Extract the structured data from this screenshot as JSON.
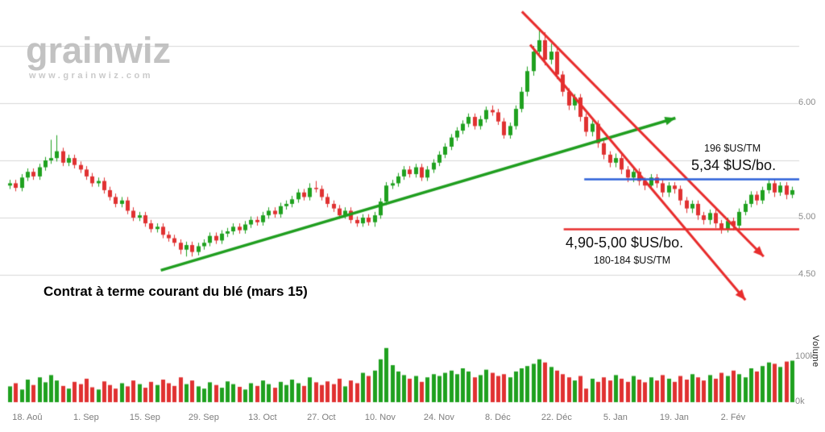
{
  "logo": {
    "name": "grainwiz",
    "url": "www.grainwiz.com"
  },
  "chart_data": {
    "type": "candlestick",
    "title": "Contrat à terme courant du blé (mars 15)",
    "colors": {
      "up": "#1fa11f",
      "down": "#e03131",
      "grid": "#d8d8d8"
    },
    "layout_hints": {
      "grid": "horizontal-only",
      "price_axis_side": "right",
      "volume_panel": "bottom",
      "legend": "none"
    },
    "price_axis": {
      "ticks": [
        {
          "label": "6.00",
          "value": 6.0
        },
        {
          "label": "5.00",
          "value": 5.0
        },
        {
          "label": "4.50",
          "value": 4.5
        }
      ],
      "gridlines": [
        6.5,
        6.0,
        5.5,
        5.0,
        4.5
      ],
      "range": [
        4.3,
        6.85
      ]
    },
    "volume_axis": {
      "label": "Volume",
      "ticks": [
        {
          "label": "100k",
          "value": 100
        },
        {
          "label": "0k",
          "value": 0
        }
      ],
      "unit": "k"
    },
    "x_ticks": [
      {
        "label": "18. Aoû",
        "index": 3
      },
      {
        "label": "1. Sep",
        "index": 13
      },
      {
        "label": "15. Sep",
        "index": 23
      },
      {
        "label": "29. Sep",
        "index": 33
      },
      {
        "label": "13. Oct",
        "index": 43
      },
      {
        "label": "27. Oct",
        "index": 53
      },
      {
        "label": "10. Nov",
        "index": 63
      },
      {
        "label": "24. Nov",
        "index": 73
      },
      {
        "label": "8. Déc",
        "index": 83
      },
      {
        "label": "22. Déc",
        "index": 93
      },
      {
        "label": "5. Jan",
        "index": 103
      },
      {
        "label": "19. Jan",
        "index": 113
      },
      {
        "label": "2. Fév",
        "index": 123
      }
    ],
    "candles_format": [
      "open",
      "high",
      "low",
      "close",
      "volume_k"
    ],
    "candles": [
      [
        5.28,
        5.33,
        5.25,
        5.3,
        35
      ],
      [
        5.3,
        5.33,
        5.23,
        5.26,
        42
      ],
      [
        5.26,
        5.38,
        5.23,
        5.35,
        28
      ],
      [
        5.35,
        5.43,
        5.32,
        5.4,
        50
      ],
      [
        5.4,
        5.43,
        5.33,
        5.36,
        38
      ],
      [
        5.36,
        5.47,
        5.33,
        5.44,
        55
      ],
      [
        5.44,
        5.53,
        5.41,
        5.5,
        44
      ],
      [
        5.5,
        5.68,
        5.47,
        5.52,
        60
      ],
      [
        5.52,
        5.72,
        5.49,
        5.58,
        48
      ],
      [
        5.58,
        5.61,
        5.45,
        5.48,
        36
      ],
      [
        5.48,
        5.55,
        5.45,
        5.52,
        30
      ],
      [
        5.52,
        5.55,
        5.43,
        5.46,
        45
      ],
      [
        5.46,
        5.49,
        5.39,
        5.42,
        40
      ],
      [
        5.42,
        5.45,
        5.33,
        5.36,
        52
      ],
      [
        5.36,
        5.39,
        5.27,
        5.3,
        33
      ],
      [
        5.3,
        5.35,
        5.27,
        5.32,
        28
      ],
      [
        5.32,
        5.35,
        5.21,
        5.24,
        46
      ],
      [
        5.24,
        5.27,
        5.15,
        5.18,
        38
      ],
      [
        5.18,
        5.21,
        5.09,
        5.12,
        30
      ],
      [
        5.12,
        5.18,
        5.09,
        5.15,
        42
      ],
      [
        5.15,
        5.18,
        5.03,
        5.06,
        35
      ],
      [
        5.06,
        5.09,
        4.97,
        5.0,
        48
      ],
      [
        5.0,
        5.05,
        4.97,
        5.02,
        40
      ],
      [
        5.02,
        5.05,
        4.92,
        4.95,
        32
      ],
      [
        4.95,
        4.98,
        4.87,
        4.9,
        45
      ],
      [
        4.9,
        4.95,
        4.87,
        4.92,
        38
      ],
      [
        4.92,
        4.95,
        4.82,
        4.85,
        50
      ],
      [
        4.85,
        4.88,
        4.79,
        4.82,
        42
      ],
      [
        4.82,
        4.85,
        4.75,
        4.78,
        36
      ],
      [
        4.78,
        4.81,
        4.68,
        4.72,
        55
      ],
      [
        4.72,
        4.79,
        4.66,
        4.76,
        40
      ],
      [
        4.76,
        4.79,
        4.66,
        4.7,
        48
      ],
      [
        4.7,
        4.78,
        4.67,
        4.75,
        35
      ],
      [
        4.75,
        4.81,
        4.72,
        4.78,
        30
      ],
      [
        4.78,
        4.87,
        4.75,
        4.84,
        44
      ],
      [
        4.84,
        4.87,
        4.77,
        4.8,
        38
      ],
      [
        4.8,
        4.89,
        4.77,
        4.86,
        32
      ],
      [
        4.86,
        4.91,
        4.83,
        4.88,
        46
      ],
      [
        4.88,
        4.95,
        4.85,
        4.92,
        40
      ],
      [
        4.92,
        4.95,
        4.86,
        4.89,
        34
      ],
      [
        4.89,
        4.97,
        4.86,
        4.94,
        28
      ],
      [
        4.94,
        5.01,
        4.91,
        4.98,
        42
      ],
      [
        4.98,
        5.01,
        4.93,
        4.96,
        36
      ],
      [
        4.96,
        5.05,
        4.93,
        5.02,
        48
      ],
      [
        5.02,
        5.09,
        4.99,
        5.06,
        40
      ],
      [
        5.06,
        5.09,
        5.0,
        5.03,
        32
      ],
      [
        5.03,
        5.13,
        5.0,
        5.1,
        45
      ],
      [
        5.1,
        5.15,
        5.07,
        5.12,
        38
      ],
      [
        5.12,
        5.19,
        5.09,
        5.16,
        50
      ],
      [
        5.16,
        5.25,
        5.13,
        5.22,
        42
      ],
      [
        5.22,
        5.25,
        5.15,
        5.18,
        36
      ],
      [
        5.18,
        5.3,
        5.15,
        5.26,
        55
      ],
      [
        5.26,
        5.32,
        5.22,
        5.25,
        44
      ],
      [
        5.25,
        5.28,
        5.15,
        5.18,
        38
      ],
      [
        5.18,
        5.21,
        5.09,
        5.12,
        46
      ],
      [
        5.12,
        5.15,
        5.05,
        5.08,
        40
      ],
      [
        5.08,
        5.11,
        4.99,
        5.02,
        52
      ],
      [
        5.02,
        5.09,
        4.99,
        5.06,
        35
      ],
      [
        5.06,
        5.09,
        4.95,
        4.98,
        48
      ],
      [
        4.98,
        5.01,
        4.92,
        4.95,
        42
      ],
      [
        4.95,
        5.03,
        4.92,
        5.0,
        65
      ],
      [
        5.0,
        5.03,
        4.93,
        4.96,
        58
      ],
      [
        4.96,
        5.05,
        4.92,
        5.02,
        70
      ],
      [
        5.02,
        5.17,
        4.99,
        5.14,
        95
      ],
      [
        5.14,
        5.31,
        5.11,
        5.28,
        120
      ],
      [
        5.28,
        5.33,
        5.25,
        5.3,
        82
      ],
      [
        5.3,
        5.39,
        5.27,
        5.36,
        68
      ],
      [
        5.36,
        5.45,
        5.33,
        5.42,
        60
      ],
      [
        5.42,
        5.45,
        5.35,
        5.38,
        52
      ],
      [
        5.38,
        5.47,
        5.35,
        5.44,
        58
      ],
      [
        5.44,
        5.47,
        5.32,
        5.35,
        45
      ],
      [
        5.35,
        5.45,
        5.32,
        5.42,
        55
      ],
      [
        5.42,
        5.51,
        5.39,
        5.48,
        62
      ],
      [
        5.48,
        5.58,
        5.45,
        5.55,
        58
      ],
      [
        5.55,
        5.65,
        5.52,
        5.62,
        65
      ],
      [
        5.62,
        5.73,
        5.59,
        5.7,
        70
      ],
      [
        5.7,
        5.79,
        5.67,
        5.76,
        62
      ],
      [
        5.76,
        5.85,
        5.73,
        5.82,
        75
      ],
      [
        5.82,
        5.91,
        5.79,
        5.88,
        68
      ],
      [
        5.88,
        5.91,
        5.77,
        5.8,
        55
      ],
      [
        5.8,
        5.89,
        5.77,
        5.86,
        60
      ],
      [
        5.86,
        5.97,
        5.83,
        5.94,
        72
      ],
      [
        5.94,
        5.98,
        5.89,
        5.92,
        65
      ],
      [
        5.92,
        5.95,
        5.81,
        5.84,
        58
      ],
      [
        5.84,
        5.87,
        5.69,
        5.72,
        62
      ],
      [
        5.72,
        5.83,
        5.69,
        5.8,
        55
      ],
      [
        5.8,
        5.98,
        5.77,
        5.95,
        68
      ],
      [
        5.95,
        6.14,
        5.92,
        6.1,
        75
      ],
      [
        6.1,
        6.32,
        6.06,
        6.28,
        80
      ],
      [
        6.28,
        6.5,
        6.24,
        6.45,
        85
      ],
      [
        6.45,
        6.65,
        6.4,
        6.55,
        95
      ],
      [
        6.55,
        6.62,
        6.33,
        6.38,
        88
      ],
      [
        6.38,
        6.52,
        6.34,
        6.45,
        78
      ],
      [
        6.45,
        6.48,
        6.21,
        6.25,
        70
      ],
      [
        6.25,
        6.28,
        6.06,
        6.1,
        62
      ],
      [
        6.1,
        6.13,
        5.94,
        5.98,
        55
      ],
      [
        5.98,
        6.08,
        5.94,
        6.05,
        48
      ],
      [
        6.05,
        6.08,
        5.84,
        5.88,
        58
      ],
      [
        5.88,
        5.91,
        5.71,
        5.75,
        30
      ],
      [
        5.75,
        5.85,
        5.71,
        5.82,
        52
      ],
      [
        5.82,
        5.85,
        5.61,
        5.65,
        45
      ],
      [
        5.65,
        5.68,
        5.51,
        5.55,
        55
      ],
      [
        5.55,
        5.58,
        5.44,
        5.48,
        48
      ],
      [
        5.48,
        5.56,
        5.44,
        5.52,
        60
      ],
      [
        5.52,
        5.55,
        5.38,
        5.42,
        52
      ],
      [
        5.42,
        5.45,
        5.31,
        5.35,
        45
      ],
      [
        5.35,
        5.44,
        5.31,
        5.4,
        58
      ],
      [
        5.4,
        5.43,
        5.28,
        5.32,
        50
      ],
      [
        5.32,
        5.35,
        5.24,
        5.28,
        44
      ],
      [
        5.28,
        5.38,
        5.24,
        5.35,
        55
      ],
      [
        5.35,
        5.38,
        5.26,
        5.3,
        48
      ],
      [
        5.3,
        5.33,
        5.18,
        5.22,
        60
      ],
      [
        5.22,
        5.31,
        5.18,
        5.28,
        52
      ],
      [
        5.28,
        5.31,
        5.21,
        5.25,
        45
      ],
      [
        5.25,
        5.28,
        5.11,
        5.15,
        58
      ],
      [
        5.15,
        5.18,
        5.04,
        5.08,
        50
      ],
      [
        5.08,
        5.15,
        5.04,
        5.12,
        62
      ],
      [
        5.12,
        5.15,
        4.98,
        5.02,
        55
      ],
      [
        5.02,
        5.05,
        4.94,
        4.98,
        48
      ],
      [
        4.98,
        5.07,
        4.94,
        5.04,
        60
      ],
      [
        5.04,
        5.07,
        4.91,
        4.95,
        52
      ],
      [
        4.95,
        4.98,
        4.86,
        4.9,
        65
      ],
      [
        4.9,
        5.0,
        4.87,
        4.97,
        58
      ],
      [
        4.97,
        5.0,
        4.89,
        4.93,
        70
      ],
      [
        4.93,
        5.08,
        4.9,
        5.05,
        62
      ],
      [
        5.05,
        5.15,
        5.02,
        5.12,
        55
      ],
      [
        5.12,
        5.23,
        5.09,
        5.2,
        75
      ],
      [
        5.2,
        5.23,
        5.11,
        5.15,
        68
      ],
      [
        5.15,
        5.27,
        5.12,
        5.24,
        80
      ],
      [
        5.24,
        5.33,
        5.21,
        5.3,
        88
      ],
      [
        5.3,
        5.33,
        5.18,
        5.22,
        85
      ],
      [
        5.22,
        5.31,
        5.19,
        5.28,
        78
      ],
      [
        5.28,
        5.31,
        5.16,
        5.2,
        90
      ],
      [
        5.2,
        5.27,
        5.17,
        5.24,
        92
      ]
    ],
    "annotations": {
      "resistance": {
        "type": "horizontal-line",
        "price": 5.34,
        "color": "#2b5fd9",
        "from_index": 97.7,
        "label_big": "5,34 $US/bo.",
        "label_small": "196 $US/TM"
      },
      "support": {
        "type": "horizontal-line",
        "price": 4.9,
        "color": "#e82c2c",
        "from_index": 94.2,
        "label_big": "4,90-5,00 $US/bo.",
        "label_small": "180-184 $US/TM"
      },
      "uptrend_arrow": {
        "color": "#1f9e1f",
        "from": {
          "index": 25.7,
          "price": 4.54
        },
        "to": {
          "index": 113.2,
          "price": 5.87
        }
      },
      "downtrend_arrows": [
        {
          "color": "#e82c2c",
          "from": {
            "index": 87.1,
            "price": 6.8
          },
          "to": {
            "index": 128.2,
            "price": 4.66
          }
        },
        {
          "color": "#e82c2c",
          "from": {
            "index": 88.5,
            "price": 6.51
          },
          "to": {
            "index": 125.1,
            "price": 4.28
          }
        }
      ]
    }
  }
}
